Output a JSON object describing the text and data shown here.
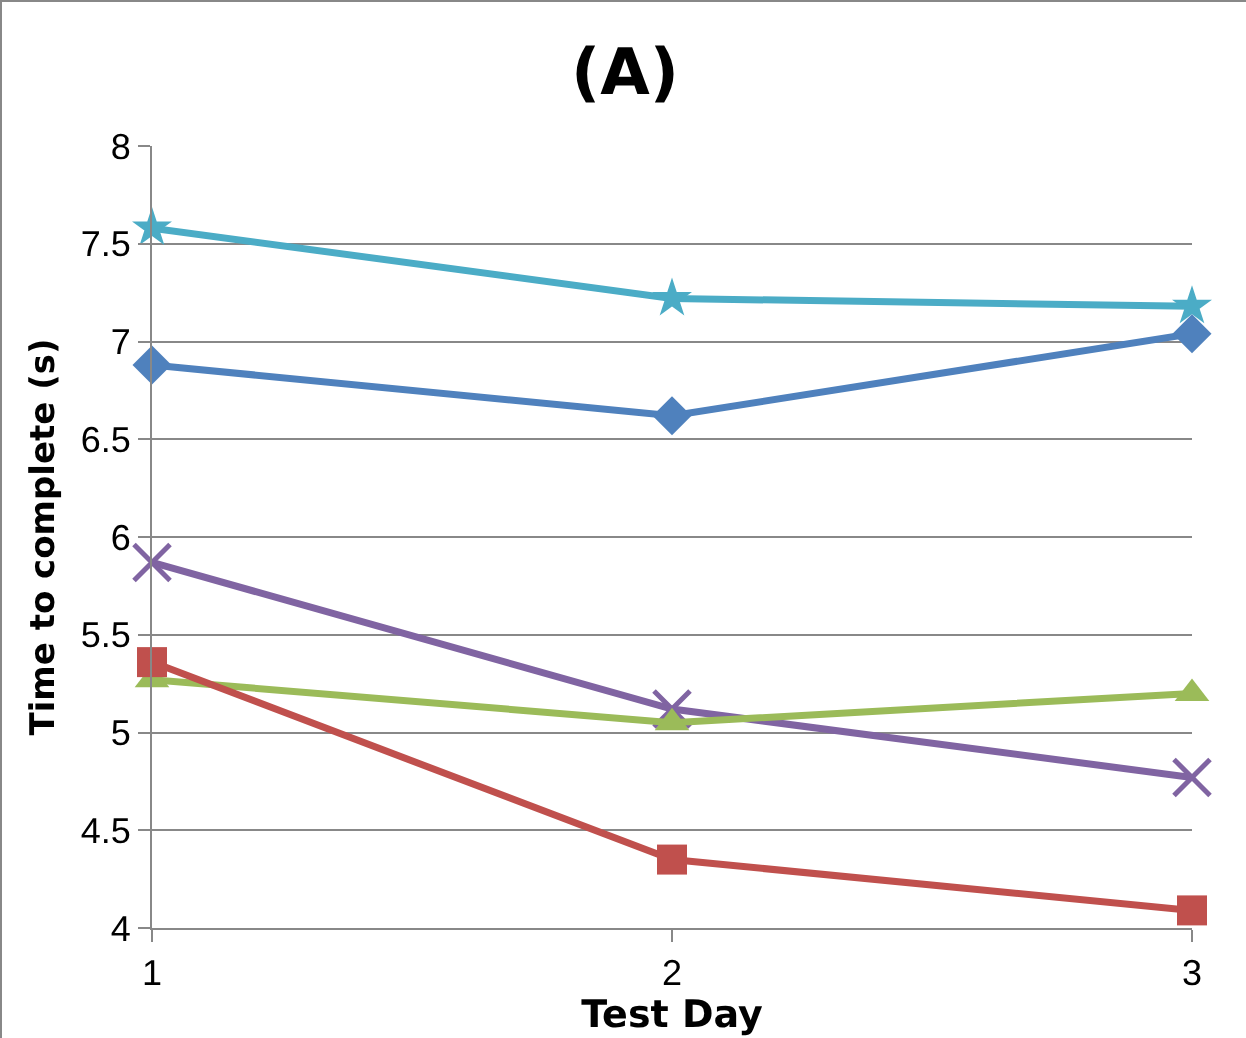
{
  "chart_data": {
    "type": "line",
    "title": "(A)",
    "xlabel": "Test Day",
    "ylabel": "Time to complete (s)",
    "x": [
      1,
      2,
      3
    ],
    "xlim": [
      1,
      3
    ],
    "xticks": [
      1,
      2,
      3
    ],
    "ylim": [
      4,
      8
    ],
    "yticks": [
      4,
      {
        "value": 4.5,
        "label": "4.5"
      },
      5,
      {
        "value": 5.5,
        "label": "5.5"
      },
      6,
      {
        "value": 6.5,
        "label": "6.5"
      },
      7,
      {
        "value": 7.5,
        "label": "7.5"
      },
      8
    ],
    "grid": "y",
    "series": [
      {
        "color": "#4bacc6",
        "marker": "star",
        "values": [
          7.58,
          7.22,
          7.18
        ]
      },
      {
        "color": "#4f81bd",
        "marker": "diamond",
        "values": [
          6.88,
          6.62,
          7.04
        ]
      },
      {
        "color": "#8064a2",
        "marker": "cross",
        "values": [
          5.87,
          5.12,
          4.77
        ]
      },
      {
        "color": "#9bbb59",
        "marker": "triangle",
        "values": [
          5.27,
          5.05,
          5.2
        ]
      },
      {
        "color": "#c0504d",
        "marker": "square",
        "values": [
          5.36,
          4.35,
          4.09
        ]
      }
    ]
  }
}
